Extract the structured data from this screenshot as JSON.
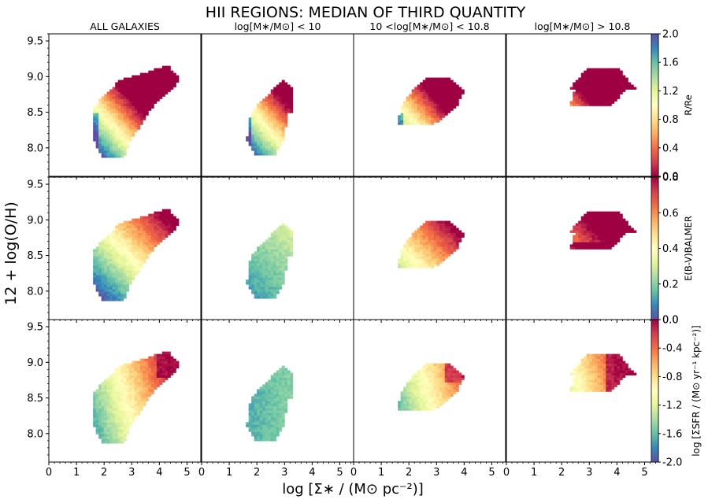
{
  "chart_data": {
    "type": "heatmap",
    "title": "HII REGIONS: MEDIAN OF THIRD QUANTITY",
    "xlabel": "log [Σ∗ / (M⊙ pc⁻²)]",
    "ylabel": "12 + log(O/H)",
    "xlim": [
      0,
      5.5
    ],
    "ylim": [
      7.6,
      9.6
    ],
    "x_ticks": [
      "0",
      "1",
      "2",
      "3",
      "4",
      "5"
    ],
    "y_ticks": [
      "8.0",
      "8.5",
      "9.0",
      "9.5"
    ],
    "columns": [
      "ALL GALAXIES",
      "log[M∗/M⊙] < 10",
      "10 <log[M∗/M⊙] < 10.8",
      "log[M∗/M⊙] > 10.8"
    ],
    "rows": [
      {
        "quantity": "R/Re",
        "colorbar_label": "R/Re",
        "colorbar_range": [
          0.0,
          2.0
        ],
        "colorbar_ticks": [
          "0.0",
          "0.4",
          "0.8",
          "1.2",
          "1.6",
          "2.0"
        ],
        "colormap": "Spectral",
        "trend": "value decreases toward high Σ∗ and high metallicity (red upper-right)"
      },
      {
        "quantity": "E(B-V) BALMER",
        "colorbar_label": "E(B-V)BALMER",
        "colorbar_range": [
          0.0,
          0.8
        ],
        "colorbar_ticks": [
          "0.0",
          "0.2",
          "0.4",
          "0.6",
          "0.8"
        ],
        "colormap": "Spectral_r",
        "trend": "value increases toward high Σ∗ and high metallicity"
      },
      {
        "quantity": "log ΣSFR",
        "colorbar_label": "log [ΣSFR / (M⊙ yr⁻¹ kpc⁻²)]",
        "colorbar_range": [
          -2.0,
          0.0
        ],
        "colorbar_ticks": [
          "-2.0",
          "-1.6",
          "-1.2",
          "-0.8",
          "-0.4",
          "0.0"
        ],
        "colormap": "Spectral_r",
        "trend": "value increases toward high Σ∗"
      }
    ]
  }
}
